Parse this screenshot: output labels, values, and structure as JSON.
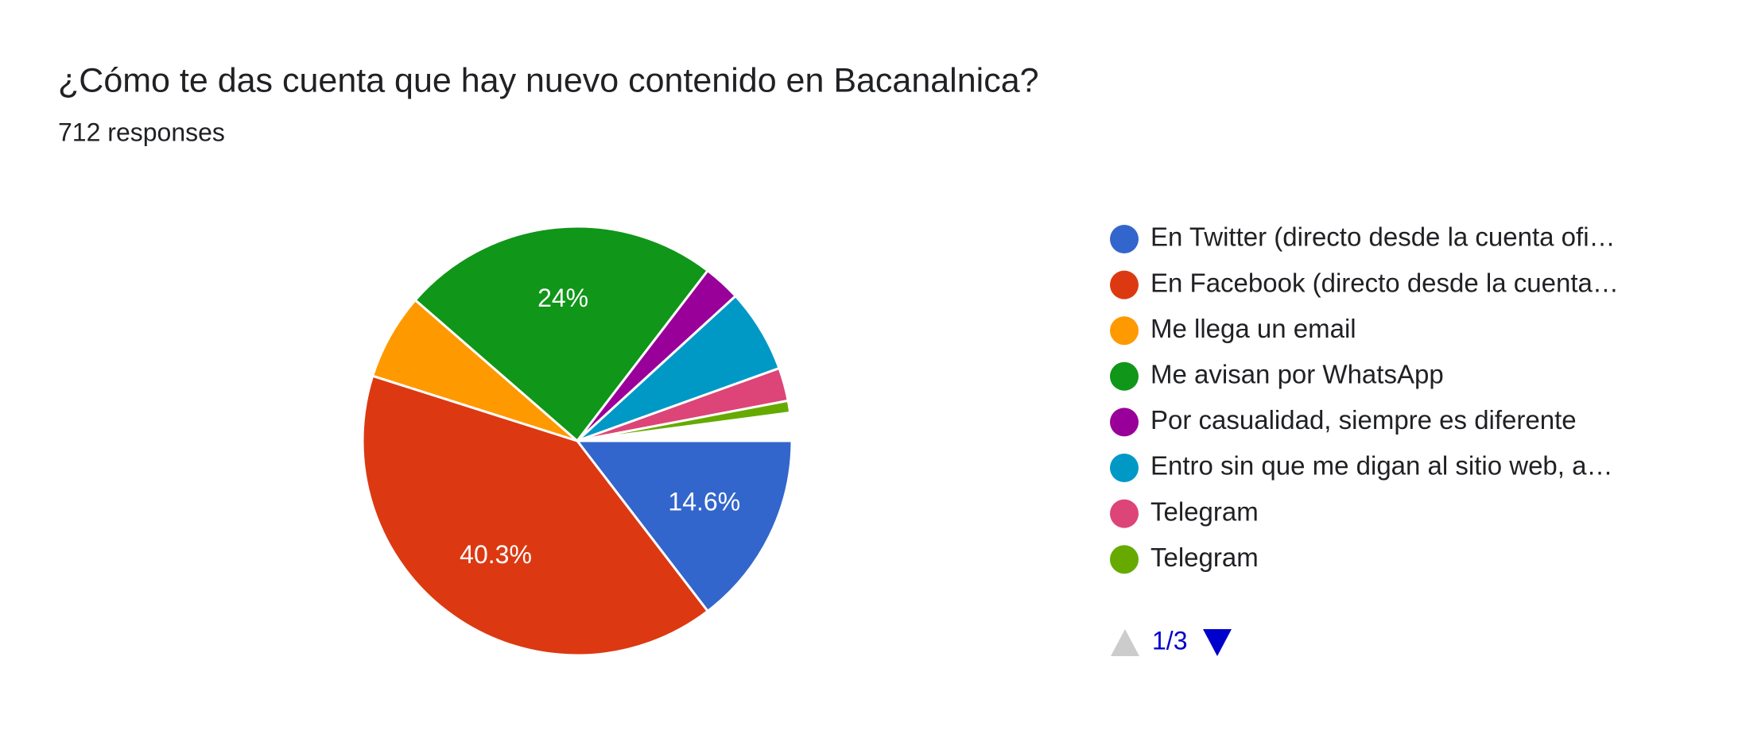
{
  "chart_data": {
    "type": "pie",
    "title": "¿Cómo te das cuenta que hay nuevo contenido en Bacanalnica?",
    "subtitle": "712 responses",
    "categories": [
      "En Twitter (directo desde la cuenta ofi…",
      "En Facebook (directo desde la cuenta…",
      "Me llega un email",
      "Me avisan por WhatsApp",
      "Por casualidad, siempre es diferente",
      "Entro sin que me digan al sitio web, a…",
      "Telegram",
      "Telegram"
    ],
    "values": [
      14.6,
      40.3,
      6.5,
      24,
      2.8,
      6.3,
      2.5,
      0.9
    ],
    "value_labels": [
      "14.6%",
      "40.3%",
      null,
      "24%",
      null,
      null,
      null,
      null
    ],
    "colors": [
      "#3366cc",
      "#dc3912",
      "#ff9900",
      "#109618",
      "#990099",
      "#0099c6",
      "#dd4477",
      "#66aa00"
    ],
    "legend": "right",
    "page": "1/3"
  }
}
